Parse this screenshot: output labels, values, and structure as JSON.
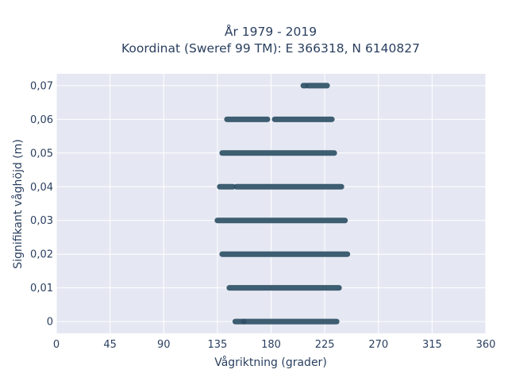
{
  "chart_data": {
    "type": "scatter",
    "title_line1": "År 1979 - 2019",
    "title_line2": "Koordinat (Sweref 99 TM): E 366318, N 6140827",
    "xlabel": "Vågriktning (grader)",
    "ylabel": "Signifikant våghöjd (m)",
    "xlim": [
      0,
      360
    ],
    "ylim": [
      -0.0035,
      0.0735
    ],
    "x_ticks": [
      0,
      45,
      90,
      135,
      180,
      225,
      270,
      315,
      360
    ],
    "x_tick_labels": [
      "0",
      "45",
      "90",
      "135",
      "180",
      "225",
      "270",
      "315",
      "360"
    ],
    "y_ticks": [
      0,
      0.01,
      0.02,
      0.03,
      0.04,
      0.05,
      0.06,
      0.07
    ],
    "y_tick_labels": [
      "0",
      "0,01",
      "0,02",
      "0,03",
      "0,04",
      "0,05",
      "0,06",
      "0,07"
    ],
    "grid": true,
    "background_color": "#e5e8f2",
    "marker_color": "#2f5066",
    "bands": [
      {
        "y": 0.0,
        "segments": [
          [
            150,
            157
          ],
          [
            157,
            235
          ]
        ]
      },
      {
        "y": 0.01,
        "segments": [
          [
            145,
            237
          ]
        ]
      },
      {
        "y": 0.02,
        "segments": [
          [
            139,
            244
          ]
        ]
      },
      {
        "y": 0.03,
        "segments": [
          [
            135,
            242
          ]
        ]
      },
      {
        "y": 0.04,
        "segments": [
          [
            137,
            148
          ],
          [
            151,
            239
          ]
        ]
      },
      {
        "y": 0.05,
        "segments": [
          [
            139,
            233
          ]
        ]
      },
      {
        "y": 0.06,
        "segments": [
          [
            143,
            177
          ],
          [
            183,
            231
          ]
        ]
      },
      {
        "y": 0.07,
        "segments": [
          [
            207,
            209
          ],
          [
            211,
            227
          ]
        ]
      }
    ]
  }
}
